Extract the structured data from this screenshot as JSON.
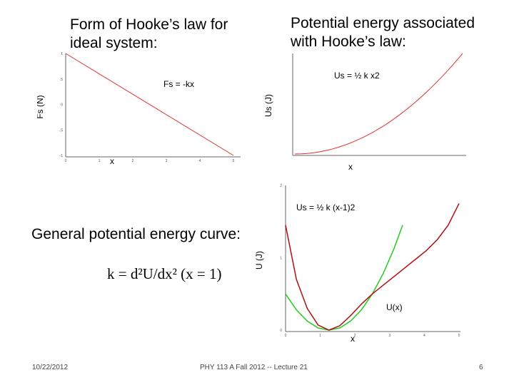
{
  "slide": {
    "title_left": "Form of Hooke’s law for ideal system:",
    "title_right": "Potential energy associated with Hooke’s law:",
    "general_label": "General potential energy curve:",
    "formula": "k = d²U/dx² (x = 1)",
    "footer": {
      "date": "10/22/2012",
      "course": "PHY 113 A  Fall 2012 -- Lecture 21",
      "page": "6"
    }
  },
  "chart_data": [
    {
      "type": "line",
      "ylabel": "Fs (N)",
      "xlabel": "x",
      "annotation": "Fs = -kx",
      "series": [
        {
          "x": [
            0,
            5
          ],
          "y": [
            1,
            -1
          ]
        }
      ],
      "xlim": [
        0,
        5
      ],
      "ylim": [
        -1,
        1
      ],
      "x_ticks": [
        "0",
        "1",
        "2",
        "3",
        "4",
        "5"
      ],
      "y_ticks": [
        "1",
        ".5",
        "0",
        "-.5",
        "-1"
      ],
      "color": "#e03030"
    },
    {
      "type": "line",
      "ylabel": "Us (J)",
      "xlabel": "x",
      "annotation": "Us = ½ k x2",
      "series": [
        {
          "x": [
            0,
            1,
            2,
            3,
            4,
            5
          ],
          "y": [
            0,
            0.04,
            0.16,
            0.36,
            0.64,
            1.0
          ]
        }
      ],
      "xlim": [
        0,
        5
      ],
      "ylim": [
        0,
        1
      ],
      "color": "#e03030"
    },
    {
      "type": "line",
      "ylabel": "U (J)",
      "xlabel": "x",
      "annotation_green": "Us = ½ k (x-1)2",
      "annotation_red": "U(x)",
      "xlim": [
        0,
        4
      ],
      "ylim": [
        0,
        2
      ],
      "series": [
        {
          "color": "#22cc22",
          "x": [
            0.0,
            0.25,
            0.5,
            0.75,
            1.0,
            1.25,
            1.5,
            1.75,
            2.0,
            2.25,
            2.5,
            2.7
          ],
          "y": [
            0.5,
            0.28,
            0.125,
            0.03,
            0.0,
            0.03,
            0.125,
            0.28,
            0.5,
            0.78,
            1.125,
            1.45
          ]
        },
        {
          "color": "#b01010",
          "x": [
            0.0,
            0.25,
            0.5,
            0.75,
            1.0,
            1.25,
            1.5,
            1.75,
            2.0,
            2.25,
            2.5,
            2.75,
            3.0,
            3.25,
            3.5,
            3.75,
            4.0
          ],
          "y": [
            1.45,
            0.7,
            0.3,
            0.07,
            0.0,
            0.06,
            0.2,
            0.36,
            0.5,
            0.62,
            0.74,
            0.86,
            0.98,
            1.1,
            1.25,
            1.45,
            1.75
          ]
        }
      ],
      "x_ticks": [
        "0",
        "1",
        "2",
        "3",
        "4",
        "5"
      ],
      "y_ticks": [
        "2",
        "1",
        "0"
      ]
    }
  ]
}
